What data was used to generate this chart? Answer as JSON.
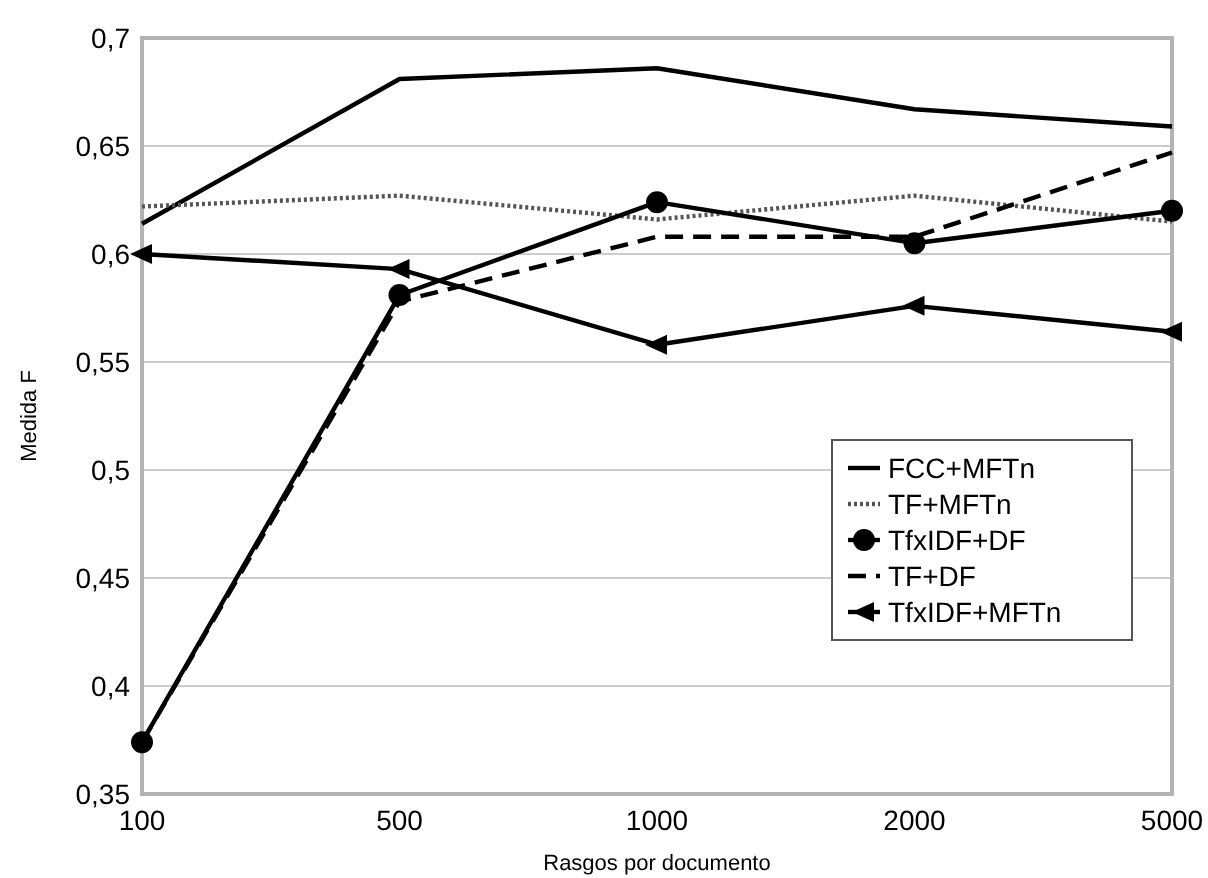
{
  "chart_data": {
    "type": "line",
    "xlabel": "Rasgos por documento",
    "ylabel": "Medida F",
    "categories": [
      "100",
      "500",
      "1000",
      "2000",
      "5000"
    ],
    "ylim": [
      0.35,
      0.7
    ],
    "yticks": [
      {
        "value": 0.35,
        "label": "0,35"
      },
      {
        "value": 0.4,
        "label": "0,4"
      },
      {
        "value": 0.45,
        "label": "0,45"
      },
      {
        "value": 0.5,
        "label": "0,5"
      },
      {
        "value": 0.55,
        "label": "0,55"
      },
      {
        "value": 0.6,
        "label": "0,6"
      },
      {
        "value": 0.65,
        "label": "0,65"
      },
      {
        "value": 0.7,
        "label": "0,7"
      }
    ],
    "grid": "y",
    "legend": "right",
    "series": [
      {
        "name": "FCC+MFTn",
        "color": "#000000",
        "line_style": "solid",
        "marker": "none",
        "values": [
          0.614,
          0.681,
          0.686,
          0.667,
          0.659
        ]
      },
      {
        "name": "TF+MFTn",
        "color": "#555555",
        "line_style": "dotted",
        "marker": "none",
        "values": [
          0.622,
          0.627,
          0.616,
          0.627,
          0.615
        ]
      },
      {
        "name": "TfxIDF+DF",
        "color": "#000000",
        "line_style": "solid",
        "marker": "circle",
        "values": [
          0.374,
          0.581,
          0.624,
          0.605,
          0.62
        ]
      },
      {
        "name": "TF+DF",
        "color": "#000000",
        "line_style": "dashed",
        "marker": "none",
        "values": [
          0.374,
          0.578,
          0.608,
          0.608,
          0.647
        ]
      },
      {
        "name": "TfxIDF+MFTn",
        "color": "#000000",
        "line_style": "solid",
        "marker": "triangle",
        "values": [
          0.6,
          0.593,
          0.558,
          0.576,
          0.564
        ]
      }
    ]
  }
}
